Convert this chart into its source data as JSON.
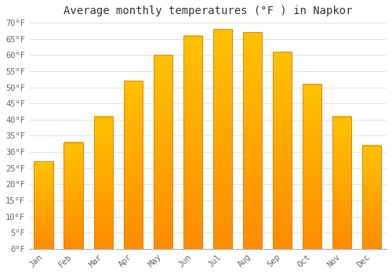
{
  "title": "Average monthly temperatures (°F ) in Napkor",
  "months": [
    "Jan",
    "Feb",
    "Mar",
    "Apr",
    "May",
    "Jun",
    "Jul",
    "Aug",
    "Sep",
    "Oct",
    "Nov",
    "Dec"
  ],
  "values": [
    27,
    33,
    41,
    52,
    60,
    66,
    68,
    67,
    61,
    51,
    41,
    32
  ],
  "bar_color_top": "#FFC200",
  "bar_color_bottom": "#FF8C00",
  "bar_edge_color": "#E08000",
  "background_color": "#FFFFFF",
  "grid_color": "#DDDDDD",
  "ylim": [
    0,
    70
  ],
  "yticks": [
    0,
    5,
    10,
    15,
    20,
    25,
    30,
    35,
    40,
    45,
    50,
    55,
    60,
    65,
    70
  ],
  "tick_label_color": "#666666",
  "title_color": "#333333",
  "title_fontsize": 10,
  "tick_fontsize": 7.5,
  "font_family": "monospace"
}
